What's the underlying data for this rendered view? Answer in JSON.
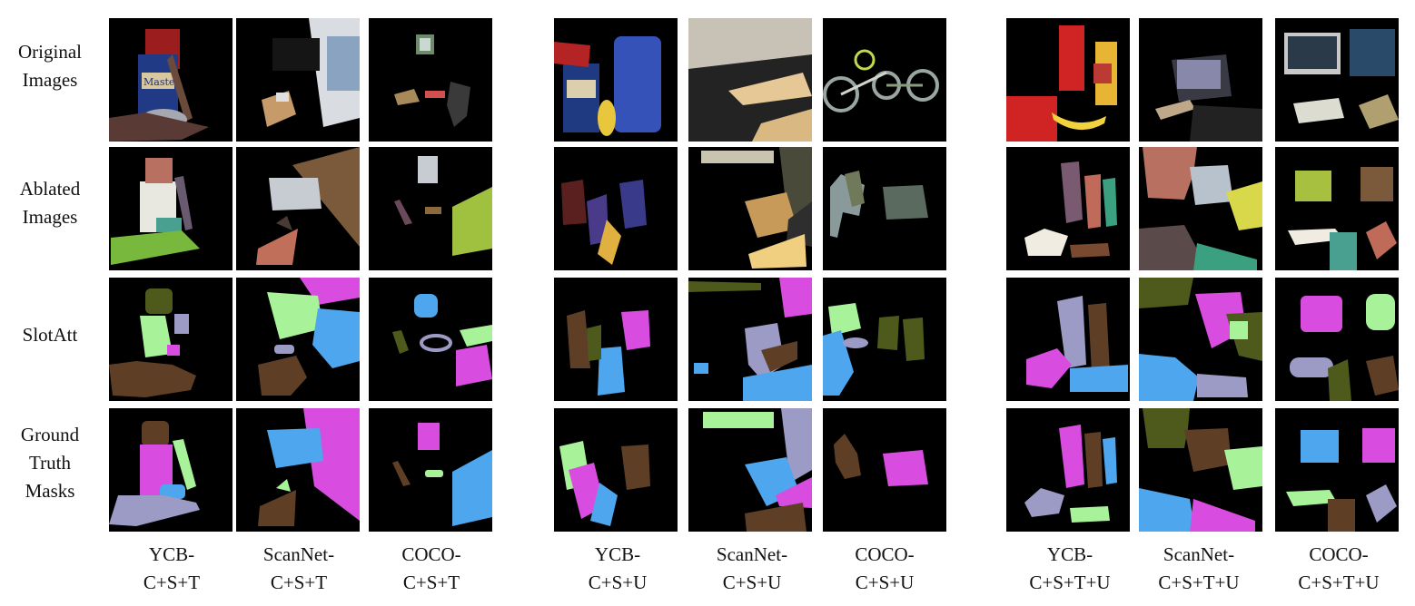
{
  "row_labels": [
    "Original\nImages",
    "Ablated\nImages",
    "SlotAtt",
    "Ground\nTruth\nMasks"
  ],
  "column_labels": [
    "YCB-\nC+S+T",
    "ScanNet-\nC+S+T",
    "COCO-\nC+S+T",
    "YCB-\nC+S+U",
    "ScanNet-\nC+S+U",
    "COCO-\nC+S+U",
    "YCB-\nC+S+T+U",
    "ScanNet-\nC+S+T+U",
    "COCO-\nC+S+T+U"
  ],
  "original_tile_lettering": [
    "Maste"
  ],
  "colors": {
    "background": "#000000",
    "mask_magenta": "#d94ce0",
    "mask_blue": "#4ea6ee",
    "mask_green": "#a8f29a",
    "mask_brown": "#5e3f26",
    "mask_olive": "#4d5a1c",
    "mask_lavender": "#9c9bc6"
  }
}
